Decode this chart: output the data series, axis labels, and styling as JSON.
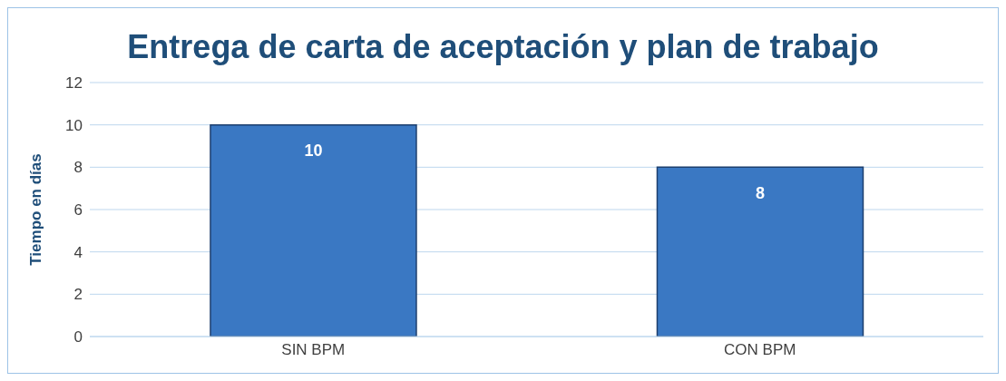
{
  "chart_data": {
    "type": "bar",
    "title": "Entrega de carta de aceptación y plan de trabajo",
    "ylabel": "Tiempo en días",
    "categories": [
      "SIN BPM",
      "CON BPM"
    ],
    "values": [
      10,
      8
    ],
    "color": "#3a78c3",
    "ylim": [
      0,
      12
    ],
    "yticks": [
      0,
      2,
      4,
      6,
      8,
      10,
      12
    ],
    "grid": "y",
    "data_labels": true
  }
}
